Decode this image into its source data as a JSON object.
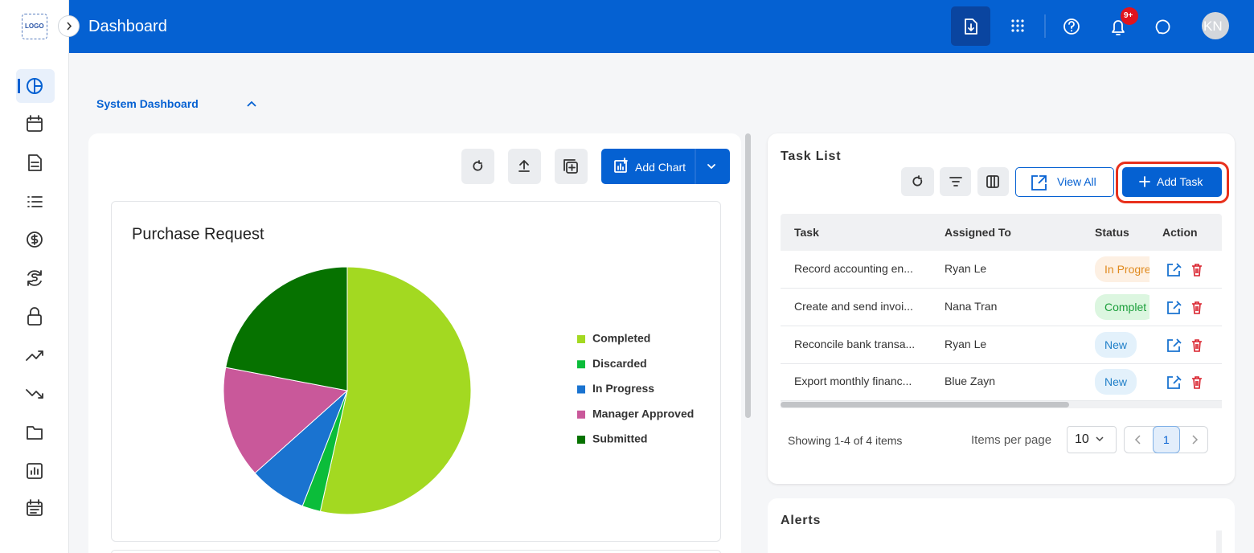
{
  "header": {
    "logo": "LOGO",
    "title": "Dashboard",
    "notification_badge": "9+",
    "avatar": "KN"
  },
  "dashboard_selector": "System Dashboard",
  "chart_toolbar": {
    "add_chart": "Add Chart"
  },
  "chart_data": {
    "type": "pie",
    "title": "Purchase Request",
    "categories": [
      "Completed",
      "Discarded",
      "In Progress",
      "Manager Approved",
      "Submitted"
    ],
    "values": [
      53.5,
      2.4,
      7.5,
      14.6,
      22
    ],
    "colors": [
      "#a3d921",
      "#0bbd3a",
      "#1a73d0",
      "#c9589a",
      "#067200"
    ],
    "legend": "right"
  },
  "task_list": {
    "title": "Task List",
    "view_all": "View All",
    "add_task": "Add Task",
    "columns": [
      "Task",
      "Assigned To",
      "Status",
      "Action"
    ],
    "rows": [
      [
        "Record accounting en...",
        "Ryan Le",
        "In Progre"
      ],
      [
        "Create and send invoi...",
        "Nana Tran",
        "Complet"
      ],
      [
        "Reconcile bank transa...",
        "Ryan Le",
        "New"
      ],
      [
        "Export monthly financ...",
        "Blue Zayn",
        "New"
      ]
    ],
    "footer": {
      "summary": "Showing 1-4 of 4 items",
      "items_per_page_label": "Items per page",
      "items_per_page": 10,
      "current_page": 1
    }
  },
  "alerts": {
    "title": "Alerts"
  }
}
